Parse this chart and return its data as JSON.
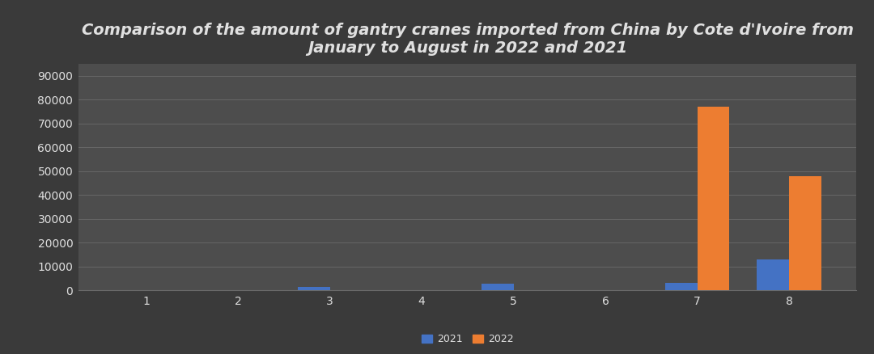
{
  "title": "Comparison of the amount of gantry cranes imported from China by Cote d'Ivoire from\nJanuary to August in 2022 and 2021",
  "months": [
    1,
    2,
    3,
    4,
    5,
    6,
    7,
    8
  ],
  "values_2021": [
    0,
    0,
    1500,
    0,
    2800,
    0,
    3000,
    13000
  ],
  "values_2022": [
    0,
    0,
    0,
    0,
    0,
    0,
    77000,
    48000
  ],
  "color_2021": "#4472c4",
  "color_2022": "#ed7d31",
  "background_color": "#3a3a3a",
  "plot_bg_color": "#4d4d4d",
  "text_color": "#e0e0e0",
  "grid_color": "#6a6a6a",
  "ylim": [
    0,
    95000
  ],
  "yticks": [
    0,
    10000,
    20000,
    30000,
    40000,
    50000,
    60000,
    70000,
    80000,
    90000
  ],
  "legend_labels": [
    "2021",
    "2022"
  ],
  "title_fontsize": 14,
  "tick_fontsize": 10,
  "legend_fontsize": 9,
  "bar_width": 0.35
}
